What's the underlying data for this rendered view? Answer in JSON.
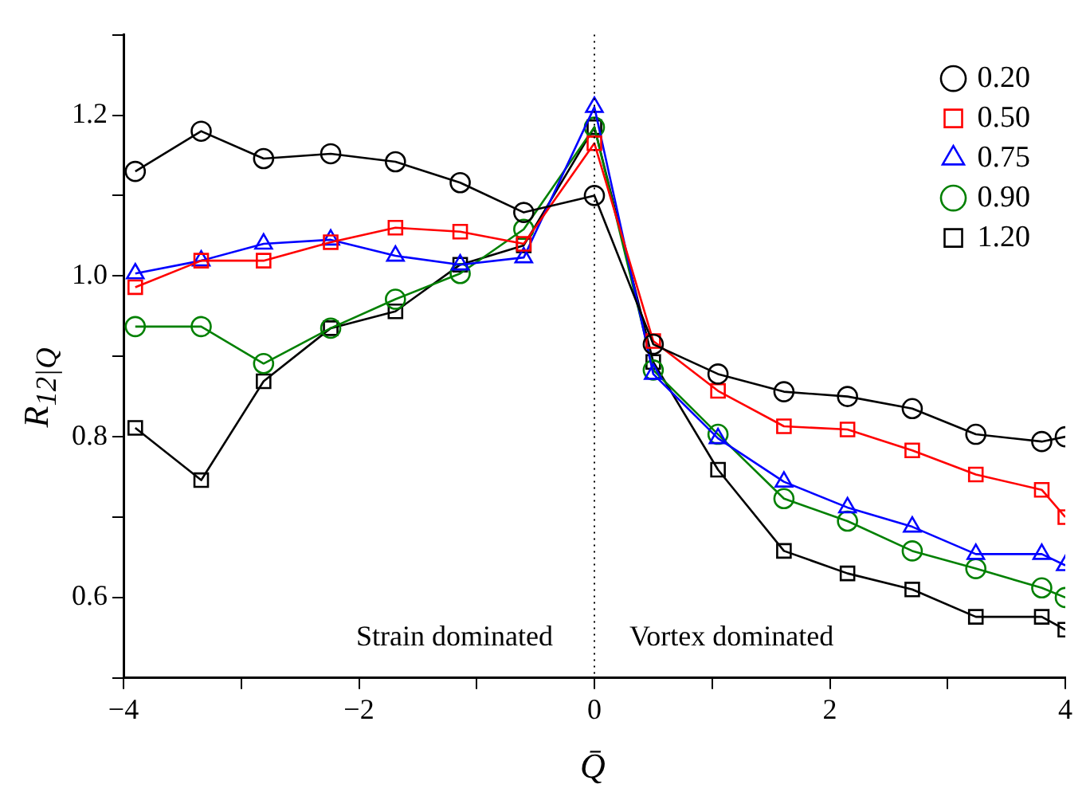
{
  "chart_data": {
    "type": "line",
    "xlabel": "Q̄",
    "ylabel": "R$_{12|Q}$",
    "xlim": [
      -4,
      4
    ],
    "ylim": [
      0.5,
      1.3
    ],
    "xticks": [
      {
        "value": -4,
        "label": "−4"
      },
      {
        "value": -3,
        "label": null
      },
      {
        "value": -2,
        "label": "−2"
      },
      {
        "value": -1,
        "label": null
      },
      0,
      {
        "value": 1,
        "label": null
      },
      2,
      {
        "value": 3,
        "label": null
      },
      4
    ],
    "yticks": [
      {
        "value": 0.5,
        "label": null
      },
      0.6,
      {
        "value": 0.7,
        "label": null
      },
      0.8,
      {
        "value": 0.9,
        "label": null
      },
      {
        "value": 1,
        "label": "1.0"
      },
      {
        "value": 1.1,
        "label": null
      },
      1.2,
      {
        "value": 1.3,
        "label": null
      }
    ],
    "x": [
      -3.9,
      -3.34,
      -2.81,
      -2.24,
      -1.69,
      -1.14,
      -0.6,
      0,
      0.5,
      1.05,
      1.61,
      2.15,
      2.7,
      3.24,
      3.8,
      4
    ],
    "series": [
      {
        "name": "0.20",
        "color": "#000000",
        "marker": "circle",
        "values": [
          1.13,
          1.18,
          1.146,
          1.152,
          1.142,
          1.116,
          1.079,
          1.1,
          0.915,
          0.878,
          0.856,
          0.85,
          0.835,
          0.803,
          0.794,
          0.8
        ]
      },
      {
        "name": "0.50",
        "color": "#ff0000",
        "marker": "square",
        "values": [
          0.986,
          1.019,
          1.019,
          1.042,
          1.06,
          1.055,
          1.04,
          1.165,
          0.919,
          0.857,
          0.813,
          0.809,
          0.783,
          0.753,
          0.734,
          0.7
        ]
      },
      {
        "name": "0.75",
        "color": "#0000ff",
        "marker": "triangle",
        "values": [
          1.003,
          1.019,
          1.04,
          1.045,
          1.025,
          1.014,
          1.023,
          1.21,
          0.878,
          0.798,
          0.744,
          0.712,
          0.688,
          0.654,
          0.654,
          0.64
        ]
      },
      {
        "name": "0.90",
        "color": "#008000",
        "marker": "circle",
        "values": [
          0.937,
          0.937,
          0.891,
          0.935,
          0.971,
          1.003,
          1.058,
          1.185,
          0.883,
          0.803,
          0.723,
          0.695,
          0.658,
          0.636,
          0.612,
          0.6
        ]
      },
      {
        "name": "1.20",
        "color": "#000000",
        "marker": "square",
        "values": [
          0.811,
          0.746,
          0.869,
          0.935,
          0.956,
          1.014,
          1.038,
          1.185,
          0.893,
          0.759,
          0.658,
          0.63,
          0.61,
          0.576,
          0.576,
          0.56
        ]
      }
    ],
    "ref_lines": [
      {
        "axis": "x",
        "value": 0,
        "line_style": "dotted",
        "color": "#000000"
      }
    ],
    "annotations": [
      "Strain dominated",
      "Vortex dominated"
    ],
    "legend": "top right",
    "grid": false
  }
}
